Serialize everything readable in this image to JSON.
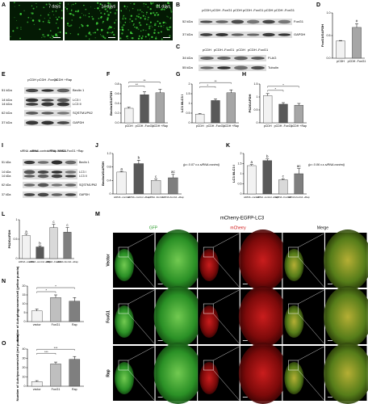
{
  "panel_labels": [
    "A",
    "B",
    "C",
    "D",
    "E",
    "F",
    "G",
    "H",
    "I",
    "J",
    "K",
    "L",
    "M",
    "N",
    "O"
  ],
  "panel_a": {
    "labels": [
      "7 days",
      "14 days",
      "21 days"
    ]
  },
  "panel_b": {
    "lanes": [
      "pCDH",
      "pCDH -FoxG1",
      "pCDH",
      "pCDH -FoxG1",
      "pCDH",
      "pCDH -FoxG1"
    ],
    "rows": [
      {
        "kda": "52 kDa",
        "protein": "FoxG1"
      },
      {
        "kda": "37 kDa",
        "protein": "GAPDH"
      }
    ]
  },
  "panel_c": {
    "lanes": [
      "pCDH",
      "pCDH -FoxG1",
      "pCDH",
      "pCDH -FoxG1"
    ],
    "rows": [
      {
        "kda": "34 kDa",
        "protein": "FLAG"
      },
      {
        "kda": "55 kDa",
        "protein": "Tubulin"
      }
    ]
  },
  "panel_e": {
    "lanes": [
      "pCDH",
      "pCDH -FoxG1",
      "pCDH +Rap"
    ],
    "rows": [
      {
        "kda": "51 kDa",
        "protein": "Beclin 1"
      },
      {
        "kda": "14 kDa",
        "protein": "LC3 I"
      },
      {
        "kda": "14 kDa",
        "protein": "LC3 II"
      },
      {
        "kda": "62 kDa",
        "protein": "SQSTM1/P62"
      },
      {
        "kda": "37 kDa",
        "protein": "GAPDH"
      }
    ]
  },
  "panel_i": {
    "lanes": [
      "siRNA -control",
      "siRNA -control +Rap",
      "siRNA -FoxG1",
      "siRNA-FoxG1 +Rap"
    ],
    "rows": [
      {
        "kda": "51 kDa",
        "protein": "Beclin 1"
      },
      {
        "kda": "14 kDa",
        "protein": "LC3 I"
      },
      {
        "kda": "14 kDa",
        "protein": "LC3 II"
      },
      {
        "kda": "62 kDa",
        "protein": "SQSTM1/P62"
      },
      {
        "kda": "37 kDa",
        "protein": "GAPDH"
      }
    ]
  },
  "panel_m": {
    "title": "mCherry-EGFP-LC3",
    "columns": [
      "GFP",
      "mCherry",
      "Merge"
    ],
    "rows": [
      "Vector",
      "FoxG1",
      "Rap"
    ]
  },
  "chart_data": [
    {
      "type": "bar",
      "ylabel": "FoxG1/GAPDH",
      "categories": [
        "pCDH",
        "pCDH -FoxG1"
      ],
      "values": [
        0.38,
        0.68
      ],
      "errors": [
        0.01,
        0.08
      ],
      "colors": [
        "#f2f2f2",
        "#a6a6a6"
      ],
      "ylim": [
        0,
        1
      ],
      "yticks": [
        {
          "value": 0,
          "label": "0.0"
        },
        0.5,
        {
          "value": 1,
          "label": "1.0"
        }
      ],
      "markers": [
        null,
        "#"
      ]
    },
    {
      "type": "bar",
      "ylabel": "Beclin1/GAPDH",
      "categories": [
        "pCDH",
        "pCDH -FoxG1",
        "pCDH +Rap"
      ],
      "values": [
        0.3,
        0.58,
        0.62
      ],
      "errors": [
        0.02,
        0.06,
        0.07
      ],
      "colors": [
        "#f2f2f2",
        "#595959",
        "#a6a6a6"
      ],
      "ylim": [
        0,
        0.8
      ],
      "yticks": [
        {
          "value": 0,
          "label": "0.0"
        },
        0.2,
        0.4,
        0.6,
        0.8
      ],
      "brackets": [
        "**",
        "**"
      ]
    },
    {
      "type": "bar",
      "ylabel": "LC3 II/LC3 I",
      "categories": [
        "pCDH",
        "pCDH -FoxG1",
        "pCDH +Rap"
      ],
      "values": [
        0.45,
        1.15,
        1.55
      ],
      "errors": [
        0.03,
        0.08,
        0.15
      ],
      "colors": [
        "#f2f2f2",
        "#595959",
        "#a6a6a6"
      ],
      "ylim": [
        0,
        2
      ],
      "yticks": [
        0,
        0.5,
        1,
        1.5,
        2
      ],
      "brackets": [
        "*",
        "**"
      ]
    },
    {
      "type": "bar",
      "ylabel": "P62/GAPDH",
      "categories": [
        "pCDH",
        "pCDH -FoxG1",
        "pCDH +Rap"
      ],
      "values": [
        1.05,
        0.72,
        0.68
      ],
      "errors": [
        0.08,
        0.06,
        0.07
      ],
      "colors": [
        "#f2f2f2",
        "#595959",
        "#a6a6a6"
      ],
      "ylim": [
        0,
        1.5
      ],
      "yticks": [
        0,
        0.5,
        1,
        1.5
      ],
      "brackets": [
        "*",
        "*"
      ]
    },
    {
      "type": "bar",
      "ylabel": "Beclin1/GAPDH",
      "categories": [
        "siRNA -control",
        "siRNA -control +Rap",
        "siRNA -FoxG1",
        "siRNA-FoxG1 +Rap"
      ],
      "values": [
        0.65,
        0.9,
        0.4,
        0.48
      ],
      "errors": [
        0.02,
        0.1,
        0.04,
        0.1
      ],
      "colors": [
        "#f2f2f2",
        "#595959",
        "#d9d9d9",
        "#7f7f7f"
      ],
      "ylim": [
        0,
        1.2
      ],
      "yticks": [
        0,
        0.4,
        0.8,
        1.2
      ],
      "markers": [
        "a",
        "b",
        "c",
        "ac"
      ],
      "note": "(p= 0.07 v.s siRNA control)"
    },
    {
      "type": "bar",
      "ylabel": "LC3 II/LC3 I",
      "categories": [
        "siRNA -control",
        "siRNA -control +Rap",
        "siRNA -FoxG1",
        "siRNA-FoxG1 +Rap"
      ],
      "values": [
        1.4,
        1.65,
        0.7,
        1.0
      ],
      "errors": [
        0.05,
        0.08,
        0.05,
        0.25
      ],
      "colors": [
        "#f2f2f2",
        "#595959",
        "#d9d9d9",
        "#7f7f7f"
      ],
      "ylim": [
        0,
        2
      ],
      "yticks": [
        0,
        0.5,
        1,
        1.5,
        2
      ],
      "markers": [
        "a",
        "b",
        "c",
        "ac"
      ],
      "note": "(p= 0.06 v.s siRNA control)"
    },
    {
      "type": "bar",
      "ylabel": "P62/GAPDH",
      "categories": [
        "siRNA -control",
        "siRNA -control +Rap",
        "siRNA -FoxG1",
        "siRNA-FoxG1 +Rap"
      ],
      "values": [
        0.6,
        0.3,
        0.8,
        0.68
      ],
      "errors": [
        0.03,
        0.03,
        0.08,
        0.12
      ],
      "colors": [
        "#f2f2f2",
        "#595959",
        "#d9d9d9",
        "#7f7f7f"
      ],
      "ylim": [
        0,
        1
      ],
      "yticks": [
        0,
        0.5,
        1
      ],
      "markers": [
        "a",
        "b",
        "c",
        "c"
      ]
    },
    {
      "type": "bar",
      "ylabel": "Number of Autophagosomes/cell (yellow puncta)",
      "categories": [
        "vector",
        "FoxG1",
        "Rap"
      ],
      "values": [
        6,
        13.5,
        11.5
      ],
      "errors": [
        1,
        1.5,
        2
      ],
      "colors": [
        "#f2f2f2",
        "#bfbfbf",
        "#7f7f7f"
      ],
      "ylim": [
        0,
        20
      ],
      "yticks": [
        0,
        5,
        10,
        15,
        20
      ],
      "brackets": [
        "*",
        "*"
      ]
    },
    {
      "type": "bar",
      "ylabel": "Number of Autolysosomes/cell (red puncta)",
      "categories": [
        "vector",
        "FoxG1",
        "Rap"
      ],
      "values": [
        5,
        24,
        29
      ],
      "errors": [
        1,
        2,
        3
      ],
      "colors": [
        "#f2f2f2",
        "#bfbfbf",
        "#7f7f7f"
      ],
      "ylim": [
        0,
        40
      ],
      "yticks": [
        0,
        10,
        20,
        30,
        40
      ],
      "brackets": [
        "***",
        "***"
      ]
    }
  ]
}
